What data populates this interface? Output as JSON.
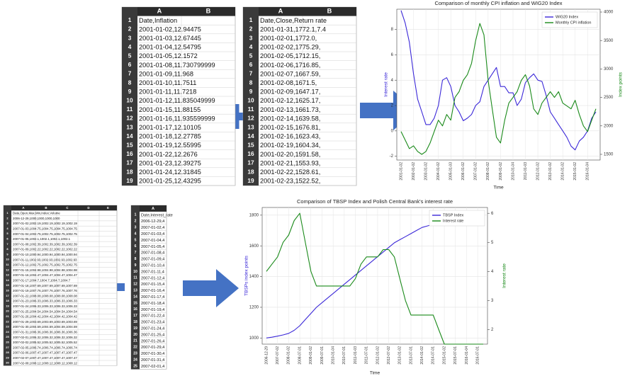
{
  "sheets": [
    {
      "columns": [
        "A",
        "B"
      ],
      "row_numbers": [
        1,
        2,
        3,
        4,
        5,
        6,
        7,
        8,
        9,
        10,
        11,
        12,
        13,
        14,
        15,
        16,
        17,
        18,
        19
      ],
      "rows": [
        "Date,Inflation",
        "2001-01-02,12.94475",
        "2001-01-03,12.67445",
        "2001-01-04,12.54795",
        "2001-01-05,12.1572",
        "2001-01-08,11.730799999",
        "2001-01-09,11.968",
        "2001-01-10,11.7511",
        "2001-01-11,11.7218",
        "2001-01-12,11.835049999",
        "2001-01-15,11.88155",
        "2001-01-16,11.935599999",
        "2001-01-17,12.10105",
        "2001-01-18,12.27785",
        "2001-01-19,12.55995",
        "2001-01-22,12.2676",
        "2001-01-23,12.39275",
        "2001-01-24,12.31845",
        "2001-01-25,12.43295"
      ]
    },
    {
      "columns": [
        "A",
        "B"
      ],
      "row_numbers": [
        1,
        2,
        3,
        4,
        5,
        6,
        7,
        8,
        9,
        10,
        11,
        12,
        13,
        14,
        15,
        16,
        17,
        18,
        19
      ],
      "rows": [
        "Date,Close,Return rate",
        "2001-01-31,1772.1,7.4",
        "2001-02-01,1772.0,",
        "2001-02-02,1775.29,",
        "2001-02-05,1712.15,",
        "2001-02-06,1716.85,",
        "2001-02-07,1667.59,",
        "2001-02-08,1671.5,",
        "2001-02-09,1647.17,",
        "2001-02-12,1625.17,",
        "2001-02-13,1661.73,",
        "2001-02-14,1639.58,",
        "2001-02-15,1676.81,",
        "2001-02-16,1623.43,",
        "2001-02-19,1604.34,",
        "2001-02-20,1591.58,",
        "2001-02-21,1553.93,",
        "2001-02-22,1528.61,",
        "2001-02-23,1522.52,"
      ]
    },
    {
      "columns": [
        "A",
        "B",
        "C",
        "D",
        "E"
      ],
      "row_numbers": [
        1,
        2,
        3,
        4,
        5,
        6,
        7,
        8,
        9,
        10,
        11,
        12,
        13,
        14,
        15,
        16,
        17,
        18,
        19,
        20,
        21,
        22,
        23,
        24,
        25,
        26,
        27,
        28,
        29,
        30
      ],
      "rows": [
        "Date,Open,Max,Min,Index,Volume",
        "2006-12-29,1000,1000,1000,1000",
        "2007-01-02,1002.19,1002.19,1002.19,1002.19",
        "2007-01-03,1004.75,1004.75,1004.75,1004.75",
        "2007-01-04,1002.75,1002.75,1002.75,1002.75",
        "2007-01-05,1002.1,1002.1,1002.1,1002.1",
        "2007-01-08,1002.39,1002.39,1002.39,1002.39",
        "2007-01-09,1002.22,1002.22,1002.22,1002.22",
        "2007-01-10,1000.94,1000.94,1000.94,1000.94",
        "2007-01-11,1002.93,1002.93,1002.93,1002.93",
        "2007-01-12,1002.75,1002.75,1002.75,1002.75",
        "2007-01-15,1004.98,1004.98,1004.98,1004.98",
        "2007-01-16,1004.47,1004.47,1004.47,1004.47",
        "2007-01-17,1004.7,1004.7,1004.7,1004.7",
        "2007-01-18,1007.69,1007.69,1007.69,1007.69",
        "2007-01-19,1007.76,1007.76,1007.76,1007.76",
        "2007-01-22,1008.08,1008.08,1008.08,1008.08",
        "2007-01-23,1006.33,1006.33,1006.33,1006.33",
        "2007-01-24,1006.33,1006.33,1006.33,1006.33",
        "2007-01-25,1004.54,1004.54,1004.54,1004.54",
        "2007-01-26,1004.42,1004.42,1004.42,1004.42",
        "2007-01-29,1003.69,1003.69,1003.69,1003.69",
        "2007-01-30,1004.59,1004.59,1004.59,1004.59",
        "2007-01-31,1006.36,1006.36,1006.36,1006.36",
        "2007-02-01,1006.32,1006.32,1006.32,1006.32",
        "2007-02-02,1005.52,1005.52,1005.52,1005.52",
        "2007-02-05,1006.74,1006.74,1006.74,1006.74",
        "2007-02-06,1007.47,1007.47,1007.47,1007.47",
        "2007-02-07,1007.47,1007.47,1007.47,1007.47",
        "2007-02-08,1008.12,1008.12,1008.12,1008.12"
      ]
    },
    {
      "columns": [
        "A"
      ],
      "row_numbers": [
        1,
        2,
        3,
        4,
        5,
        6,
        7,
        8,
        9,
        10,
        11,
        12,
        13,
        14,
        15,
        16,
        17,
        18,
        19,
        20,
        21,
        22,
        23,
        24,
        25
      ],
      "rows": [
        "Date,Interest_rate",
        "2006-12-29,4",
        "2007-01-02,4",
        "2007-01-03,4",
        "2007-01-04,4",
        "2007-01-05,4",
        "2007-01-08,4",
        "2007-01-09,4",
        "2007-01-10,4",
        "2007-01-11,4",
        "2007-01-12,4",
        "2007-01-15,4",
        "2007-01-16,4",
        "2007-01-17,4",
        "2007-01-18,4",
        "2007-01-19,4",
        "2007-01-22,4",
        "2007-01-23,4",
        "2007-01-24,4",
        "2007-01-25,4",
        "2007-01-26,4",
        "2007-01-29,4",
        "2007-01-30,4",
        "2007-01-31,4",
        "2007-02-01,4"
      ]
    }
  ],
  "chart_data": [
    {
      "type": "line",
      "title": "Comparison of monthly CPI inflation and WIG20 Index",
      "x_label": "Time",
      "y_label": "Interest rate",
      "y2_label": "Index points",
      "grid": true,
      "legend": "upper right",
      "categories": [
        "2001-01-02",
        null,
        null,
        "2002-01-02",
        null,
        null,
        "2003-01-02",
        null,
        null,
        "2004-01-02",
        null,
        null,
        "2005-01-03",
        null,
        null,
        "2006-01-02",
        null,
        null,
        "2007-01-02",
        null,
        null,
        "2008-01-02",
        null,
        null,
        "2009-01-02",
        null,
        null,
        "2010-01-04",
        null,
        null,
        "2011-01-03",
        null,
        null,
        "2012-01-02",
        null,
        null,
        "2013-01-02",
        null,
        null,
        "2014-01-02",
        null,
        null,
        "2015-01-02",
        null,
        null,
        "2016-01-04",
        null,
        null
      ],
      "series": [
        {
          "name": "WIG20 Index",
          "color": "#3b28d8",
          "axis": "y",
          "values": [
            9.5,
            8.5,
            7.0,
            4.5,
            2.5,
            1.5,
            0.5,
            0.5,
            1.0,
            2.0,
            4.0,
            4.2,
            3.5,
            2.0,
            1.5,
            0.8,
            1.0,
            1.3,
            2.0,
            2.3,
            3.5,
            4.0,
            4.5,
            5.0,
            3.5,
            3.5,
            3.0,
            3.0,
            2.0,
            2.5,
            3.8,
            4.2,
            4.5,
            4.0,
            3.9,
            2.8,
            1.5,
            1.0,
            0.5,
            0.0,
            -0.5,
            -1.2,
            -1.5,
            -0.8,
            -0.5,
            0.0,
            1.0,
            1.5
          ]
        },
        {
          "name": "Monthly CPI inflation",
          "color": "#1a8a1a",
          "axis": "y2",
          "values": [
            1900,
            1750,
            1600,
            1650,
            1550,
            1500,
            1550,
            1700,
            1900,
            2100,
            2000,
            2200,
            2100,
            2500,
            2600,
            2800,
            2900,
            3100,
            3500,
            3800,
            3600,
            2800,
            2300,
            1800,
            1700,
            2100,
            2400,
            2500,
            2600,
            2800,
            2900,
            2700,
            2300,
            2200,
            2400,
            2500,
            2600,
            2500,
            2600,
            2400,
            2350,
            2300,
            2450,
            2200,
            2000,
            1900,
            2100,
            2300
          ]
        }
      ],
      "ylim": [
        -2.3,
        9.6
      ],
      "yticks": [
        -2,
        0,
        2,
        4,
        6,
        8
      ],
      "y2lim": [
        1400,
        4050
      ],
      "y2ticks": [
        1500,
        2000,
        2500,
        3000,
        3500,
        4000
      ]
    },
    {
      "type": "line",
      "title": "Comparison of TBSP Index and Polish Central Bank's interest rate",
      "x_label": "Time",
      "y_label": "TBSPs index points",
      "y2_label": "Interest rate",
      "grid": true,
      "legend": "upper right",
      "categories": [
        "2006-12-29",
        null,
        "2007-07-02",
        null,
        "2008-01-02",
        null,
        "2008-07-01",
        null,
        "2009-01-02",
        null,
        "2009-07-01",
        null,
        "2010-01-04",
        null,
        "2010-07-01",
        null,
        "2011-01-03",
        null,
        "2011-07-01",
        null,
        "2012-01-02",
        null,
        "2012-07-02",
        null,
        "2013-01-02",
        null,
        "2013-07-01",
        null,
        "2014-01-02",
        null,
        "2014-07-01",
        null,
        "2015-01-02",
        null,
        "2015-07-01",
        null,
        "2016-01-04",
        null,
        "2016-07-01",
        null
      ],
      "series": [
        {
          "name": "TBSP Index",
          "color": "#3b28d8",
          "axis": "y",
          "values": [
            1000,
            1005,
            1012,
            1020,
            1030,
            1050,
            1080,
            1120,
            1160,
            1200,
            1230,
            1260,
            1290,
            1320,
            1350,
            1380,
            1410,
            1440,
            1470,
            1500,
            1530,
            1560,
            1590,
            1620,
            1640,
            1660,
            1680,
            1700,
            1720,
            1730,
            1740,
            1750,
            1760,
            1770,
            1780,
            1790,
            1795,
            1800,
            1805,
            1810
          ]
        },
        {
          "name": "Interest rate",
          "color": "#1a8a1a",
          "axis": "y2",
          "values": [
            4.0,
            4.25,
            4.5,
            5.0,
            5.25,
            5.75,
            6.0,
            5.0,
            4.0,
            3.5,
            3.5,
            3.5,
            3.5,
            3.5,
            3.5,
            3.5,
            3.75,
            4.25,
            4.5,
            4.5,
            4.5,
            4.75,
            4.75,
            4.5,
            3.75,
            3.0,
            2.5,
            2.5,
            2.5,
            2.5,
            2.5,
            2.0,
            1.5,
            1.5,
            1.5,
            1.5,
            1.5,
            1.5,
            1.5,
            1.5
          ]
        }
      ],
      "ylim": [
        960,
        1850
      ],
      "yticks": [
        1000,
        1200,
        1400,
        1600,
        1800
      ],
      "y2lim": [
        1.5,
        6.2
      ],
      "y2ticks": [
        2,
        3,
        4,
        5,
        6
      ]
    }
  ]
}
